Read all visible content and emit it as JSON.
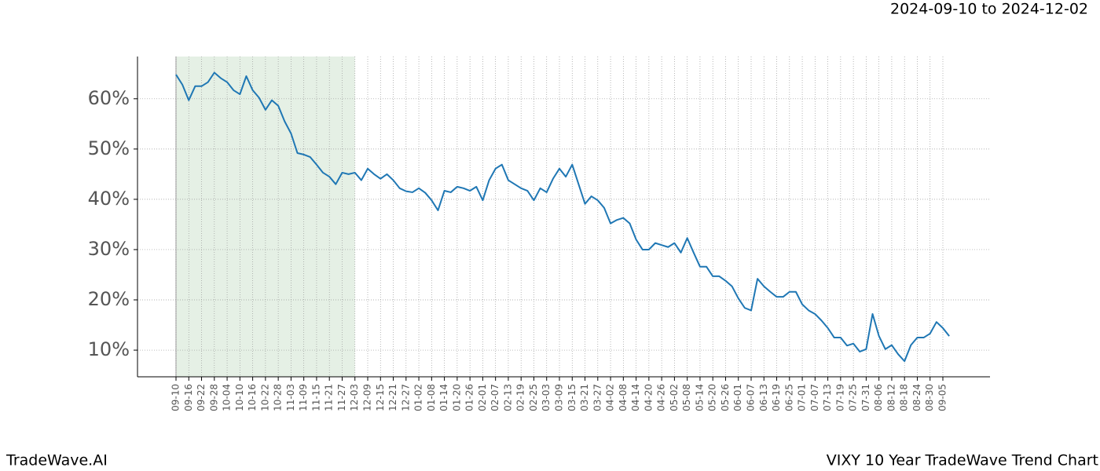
{
  "chart_data": {
    "type": "line",
    "title": "VIXY 10 Year TradeWave Trend Chart",
    "subtitle": "2024-09-10 to 2024-12-02",
    "brand": "TradeWave.AI",
    "categories": [
      "09-10",
      null,
      "09-16",
      null,
      "09-22",
      null,
      "09-28",
      null,
      "10-04",
      null,
      "10-10",
      null,
      "10-16",
      null,
      "10-22",
      null,
      "10-28",
      null,
      "11-03",
      null,
      "11-09",
      null,
      "11-15",
      null,
      "11-21",
      null,
      "11-27",
      null,
      "12-03",
      null,
      "12-09",
      null,
      "12-15",
      null,
      "12-21",
      null,
      "12-27",
      null,
      "01-02",
      null,
      "01-08",
      null,
      "01-14",
      null,
      "01-20",
      null,
      "01-26",
      null,
      "02-01",
      null,
      "02-07",
      null,
      "02-13",
      null,
      "02-19",
      null,
      "02-25",
      null,
      "03-03",
      null,
      "03-09",
      null,
      "03-15",
      null,
      "03-21",
      null,
      "03-27",
      null,
      "04-02",
      null,
      "04-08",
      null,
      "04-14",
      null,
      "04-20",
      null,
      "04-26",
      null,
      "05-02",
      null,
      "05-08",
      null,
      "05-14",
      null,
      "05-20",
      null,
      "05-26",
      null,
      "06-01",
      null,
      "06-07",
      null,
      "06-13",
      null,
      "06-19",
      null,
      "06-25",
      null,
      "07-01",
      null,
      "07-07",
      null,
      "07-13",
      null,
      "07-19",
      null,
      "07-25",
      null,
      "07-31",
      null,
      "08-06",
      null,
      "08-12",
      null,
      "08-18",
      null,
      "08-24",
      null,
      "08-30",
      null,
      "09-05",
      null
    ],
    "series": [
      {
        "color": "#1f77b4",
        "values": [
          64.8,
          62.8,
          59.7,
          62.5,
          62.5,
          63.3,
          65.2,
          64.1,
          63.3,
          61.7,
          60.9,
          64.5,
          61.7,
          60.2,
          57.8,
          59.7,
          58.6,
          55.5,
          53.1,
          49.2,
          48.9,
          48.4,
          46.9,
          45.3,
          44.5,
          43.0,
          45.3,
          45.0,
          45.3,
          43.8,
          46.1,
          45.0,
          44.1,
          45.0,
          43.8,
          42.2,
          41.6,
          41.4,
          42.2,
          41.3,
          39.8,
          37.8,
          41.7,
          41.4,
          42.5,
          42.2,
          41.7,
          42.5,
          39.8,
          43.8,
          46.1,
          46.9,
          43.8,
          43.0,
          42.2,
          41.7,
          39.8,
          42.2,
          41.4,
          44.1,
          46.1,
          44.5,
          46.9,
          43.0,
          39.1,
          40.6,
          39.8,
          38.3,
          35.2,
          35.9,
          36.3,
          35.2,
          32.0,
          30.0,
          30.0,
          31.3,
          30.9,
          30.5,
          31.3,
          29.4,
          32.3,
          29.4,
          26.6,
          26.6,
          24.7,
          24.7,
          23.8,
          22.7,
          20.3,
          18.4,
          17.9,
          24.2,
          22.7,
          21.6,
          20.6,
          20.6,
          21.6,
          21.6,
          19.1,
          17.9,
          17.2,
          15.9,
          14.4,
          12.5,
          12.5,
          10.9,
          11.3,
          9.7,
          10.2,
          17.2,
          12.8,
          10.2,
          11.0,
          9.2,
          7.8,
          11.0,
          12.5,
          12.5,
          13.3,
          15.6,
          14.4,
          12.8
        ]
      }
    ],
    "ylim": [
      4.7,
      68.4
    ],
    "yticks": [
      {
        "value": 10,
        "label": "10%"
      },
      {
        "value": 20,
        "label": "20%"
      },
      {
        "value": 30,
        "label": "30%"
      },
      {
        "value": 40,
        "label": "40%"
      },
      {
        "value": 50,
        "label": "50%"
      },
      {
        "value": 60,
        "label": "60%"
      }
    ],
    "grid": true,
    "shade": {
      "from": "09-10",
      "to": "12-03",
      "color": "#e5f0e5"
    }
  }
}
